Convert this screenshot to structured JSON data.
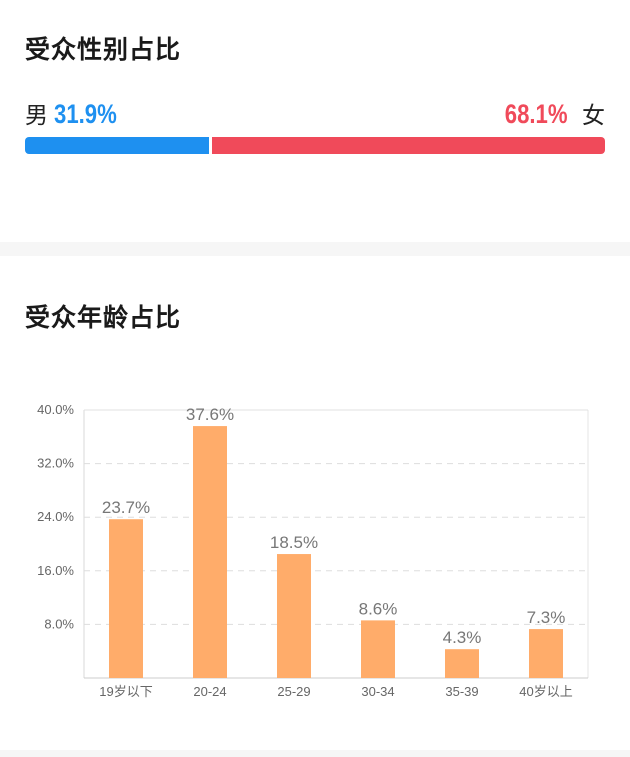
{
  "gender": {
    "title": "受众性别占比",
    "male_label": "男",
    "male_pct": "31.9%",
    "female_label": "女",
    "female_pct": "68.1%",
    "male_value": 31.9,
    "female_value": 68.1,
    "male_color": "#1e90f0",
    "female_color": "#f04a5a"
  },
  "age": {
    "title": "受众年龄占比"
  },
  "chart_data": {
    "type": "bar",
    "categories": [
      "19岁以下",
      "20-24",
      "25-29",
      "30-34",
      "35-39",
      "40岁以上"
    ],
    "values": [
      23.7,
      37.6,
      18.5,
      8.6,
      4.3,
      7.3
    ],
    "value_labels": [
      "23.7%",
      "37.6%",
      "18.5%",
      "8.6%",
      "4.3%",
      "7.3%"
    ],
    "yticks": [
      "8.0%",
      "16.0%",
      "24.0%",
      "32.0%",
      "40.0%"
    ],
    "ytick_values": [
      8,
      16,
      24,
      32,
      40
    ],
    "ylim": [
      0,
      40
    ],
    "grid": true,
    "bar_color": "#ffac6a",
    "title": "",
    "xlabel": "",
    "ylabel": ""
  }
}
